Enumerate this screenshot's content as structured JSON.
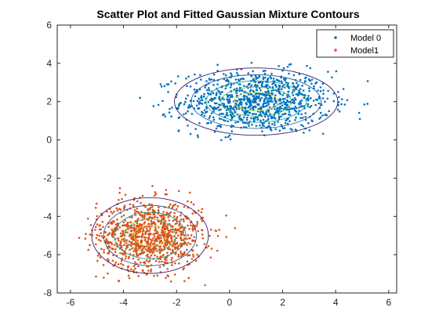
{
  "chart_data": {
    "type": "scatter",
    "title": "Scatter Plot and Fitted Gaussian Mixture Contours",
    "xlabel": "",
    "ylabel": "",
    "xlim": [
      -6.5,
      6.3
    ],
    "ylim": [
      -8,
      6
    ],
    "xticks": [
      -6,
      -4,
      -2,
      0,
      2,
      4,
      6
    ],
    "yticks": [
      -8,
      -6,
      -4,
      -2,
      0,
      2,
      4,
      6
    ],
    "grid": false,
    "legend_position": "top-right",
    "series": [
      {
        "name": "Model 0",
        "color": "#0072BD",
        "points": 1000,
        "center": [
          1,
          2
        ],
        "std": [
          1.4,
          0.8
        ],
        "x_range": [
          -3.5,
          5.8
        ],
        "y_range": [
          -0.1,
          4.4
        ]
      },
      {
        "name": "Model1",
        "color": "#D95319",
        "points": 1000,
        "center": [
          -3,
          -5
        ],
        "std": [
          1.0,
          0.9
        ],
        "x_range": [
          -5.9,
          0.3
        ],
        "y_range": [
          -7.6,
          -2.0
        ]
      }
    ],
    "contours": [
      {
        "component": 0,
        "center": [
          1,
          2
        ],
        "axes": [
          4.0,
          1.0
        ],
        "std": [
          1.4,
          0.8
        ]
      },
      {
        "component": 1,
        "center": [
          -3,
          -5
        ],
        "axes": [
          1.0,
          0.9
        ],
        "std": [
          1.0,
          0.9
        ]
      }
    ],
    "contour_colors": [
      "#3b1c6e",
      "#2f5aa0",
      "#1d9a9a",
      "#58c26a",
      "#d6e53a"
    ]
  }
}
